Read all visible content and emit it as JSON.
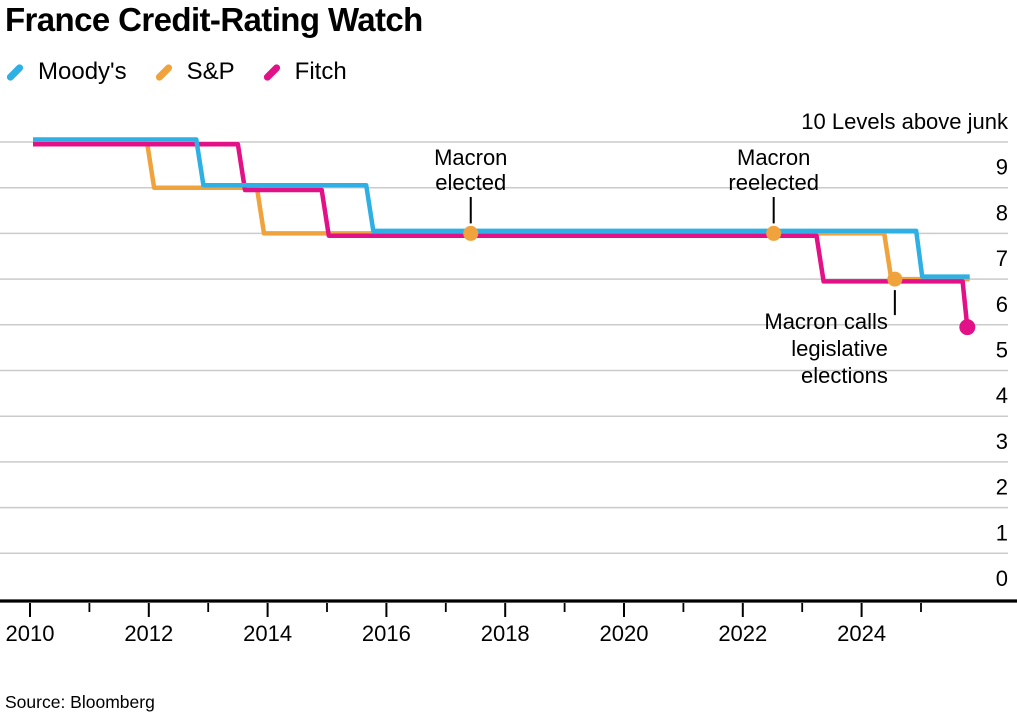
{
  "title": "France Credit-Rating Watch",
  "source": "Source: Bloomberg",
  "colors": {
    "moodys": "#2FB0E5",
    "sp": "#F0A33C",
    "fitch": "#E31187",
    "grid": "#CBCBCB",
    "axis": "#000000",
    "annotation_line": "#000000"
  },
  "legend": [
    {
      "name": "Moody's",
      "color_key": "moodys"
    },
    {
      "name": "S&P",
      "color_key": "sp"
    },
    {
      "name": "Fitch",
      "color_key": "fitch"
    }
  ],
  "chart_data": {
    "type": "line",
    "step": true,
    "title": "France Credit-Rating Watch",
    "top_axis_label": "10 Levels above junk",
    "ylabel": "Levels above junk",
    "ylim": [
      0,
      10
    ],
    "xlim": [
      2010,
      2026.6
    ],
    "grid": true,
    "legend_position": "top-left",
    "y_ticks": [
      9,
      8,
      7,
      6,
      5,
      4,
      3,
      2,
      1,
      0
    ],
    "x_major_ticks": [
      2010,
      2012,
      2014,
      2016,
      2018,
      2020,
      2022,
      2024
    ],
    "x_minor_ticks": [
      2011,
      2013,
      2015,
      2017,
      2019,
      2021,
      2023,
      2025
    ],
    "series": [
      {
        "name": "Moody's",
        "color_key": "moodys",
        "offset": -2.5,
        "z": 3,
        "end_dot": false,
        "points": [
          [
            2010.05,
            10
          ],
          [
            2012.8,
            10
          ],
          [
            2012.92,
            9
          ],
          [
            2015.66,
            9
          ],
          [
            2015.78,
            8
          ],
          [
            2024.92,
            8
          ],
          [
            2025.02,
            7
          ],
          [
            2025.82,
            7
          ]
        ]
      },
      {
        "name": "S&P",
        "color_key": "sp",
        "offset": 0,
        "z": 1,
        "end_dot": false,
        "points": [
          [
            2010.05,
            10
          ],
          [
            2011.97,
            10
          ],
          [
            2012.09,
            9
          ],
          [
            2013.82,
            9
          ],
          [
            2013.94,
            8
          ],
          [
            2024.38,
            8
          ],
          [
            2024.5,
            7
          ],
          [
            2025.82,
            7
          ]
        ]
      },
      {
        "name": "Fitch",
        "color_key": "fitch",
        "offset": 2.3,
        "z": 2,
        "end_dot": true,
        "points": [
          [
            2010.05,
            10
          ],
          [
            2013.5,
            10
          ],
          [
            2013.62,
            9
          ],
          [
            2014.91,
            9
          ],
          [
            2015.03,
            8
          ],
          [
            2023.24,
            8
          ],
          [
            2023.36,
            7
          ],
          [
            2025.7,
            7
          ],
          [
            2025.78,
            6
          ]
        ]
      }
    ],
    "annotations": [
      {
        "id": "macron-elected",
        "lines": [
          "Macron",
          "elected"
        ],
        "year": 2017.42,
        "level": 8,
        "dot_color_key": "sp",
        "style": "above"
      },
      {
        "id": "macron-reelected",
        "lines": [
          "Macron",
          "reelected"
        ],
        "year": 2022.52,
        "level": 8,
        "dot_color_key": "sp",
        "style": "above"
      },
      {
        "id": "macron-calls-elections",
        "lines": [
          "Macron calls",
          "legislative",
          "elections"
        ],
        "year": 2024.56,
        "level": 7,
        "dot_color_key": "sp",
        "style": "below-left"
      }
    ]
  }
}
